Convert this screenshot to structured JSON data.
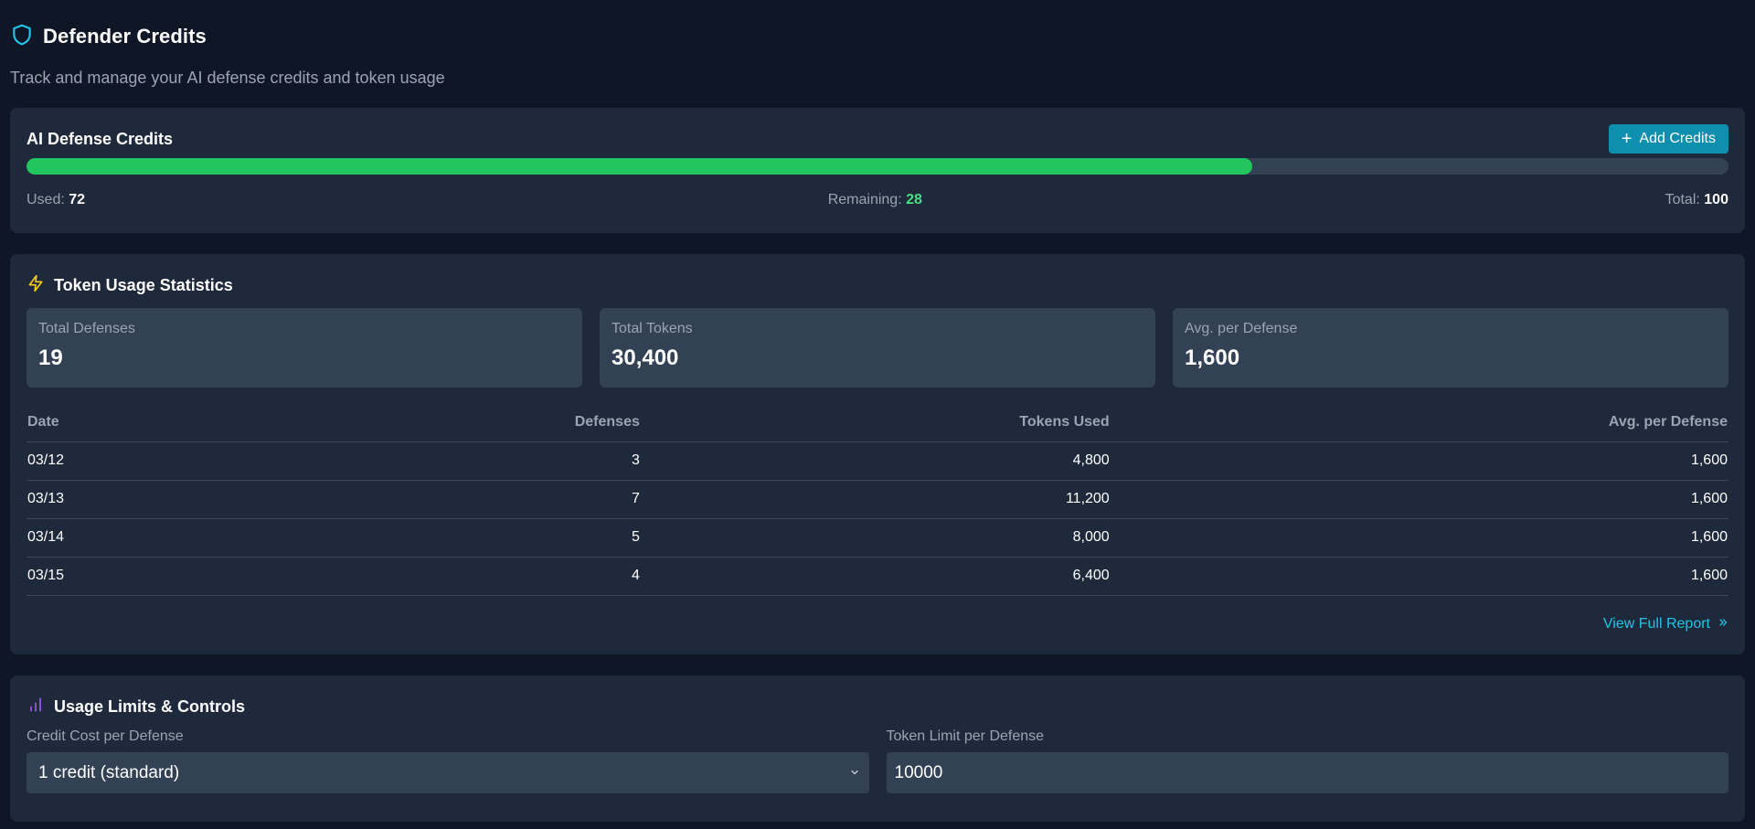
{
  "header": {
    "title": "Defender Credits",
    "subtitle": "Track and manage your AI defense credits and token usage",
    "icon": "shield-icon",
    "accent": "#22c3e6"
  },
  "credits": {
    "title": "AI Defense Credits",
    "add_label": "Add Credits",
    "used_label": "Used:",
    "used": "72",
    "remaining_label": "Remaining:",
    "remaining": "28",
    "total_label": "Total:",
    "total": "100",
    "progress_fraction": 0.72,
    "progress_color": "#22c55e"
  },
  "usage": {
    "title": "Token Usage Statistics",
    "icon": "lightning-icon",
    "tiles": [
      {
        "label": "Total Defenses",
        "value": "19"
      },
      {
        "label": "Total Tokens",
        "value": "30,400"
      },
      {
        "label": "Avg. per Defense",
        "value": "1,600"
      }
    ],
    "columns": [
      "Date",
      "Defenses",
      "Tokens Used",
      "Avg. per Defense"
    ],
    "rows": [
      [
        "03/12",
        "3",
        "4,800",
        "1,600"
      ],
      [
        "03/13",
        "7",
        "11,200",
        "1,600"
      ],
      [
        "03/14",
        "5",
        "8,000",
        "1,600"
      ],
      [
        "03/15",
        "4",
        "6,400",
        "1,600"
      ]
    ],
    "report_link": "View Full Report"
  },
  "limits": {
    "title": "Usage Limits & Controls",
    "icon": "bar-chart-icon",
    "credit_cost_label": "Credit Cost per Defense",
    "credit_cost_value": "1 credit (standard)",
    "token_limit_label": "Token Limit per Defense",
    "token_limit_value": "10000"
  }
}
